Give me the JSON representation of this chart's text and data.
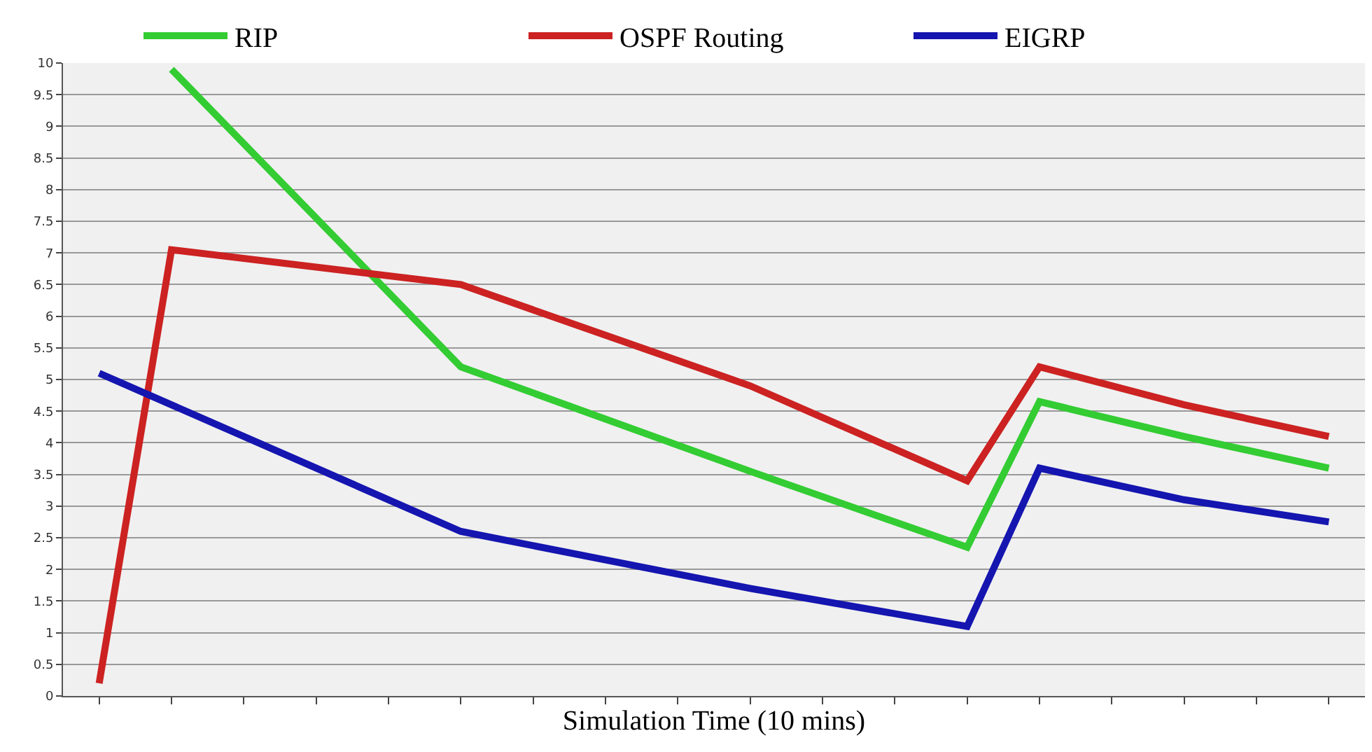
{
  "chart_data": {
    "type": "line",
    "xlabel": "Simulation Time (10 mins)",
    "categories": [
      null,
      null,
      null,
      null,
      null,
      null,
      null,
      null,
      null,
      null,
      null,
      null,
      null,
      null,
      null,
      null,
      null,
      null
    ],
    "ylim": [
      0,
      10
    ],
    "yticks": [
      0,
      0.5,
      1,
      1.5,
      2,
      2.5,
      3,
      3.5,
      4,
      4.5,
      5,
      5.5,
      6,
      6.5,
      7,
      7.5,
      8,
      8.5,
      9,
      9.5,
      10
    ],
    "grid": "y",
    "legend": "top",
    "marker": "none",
    "line_style": "solid",
    "series": [
      {
        "name": "RIP",
        "color": "#33cc33",
        "values": [
          null,
          9.9,
          null,
          null,
          null,
          5.2,
          null,
          null,
          null,
          3.55,
          null,
          null,
          2.35,
          4.65,
          null,
          4.1,
          null,
          3.6
        ]
      },
      {
        "name": "OSPF Routing",
        "color": "#cc2222",
        "values": [
          0.2,
          7.05,
          null,
          null,
          null,
          6.5,
          null,
          null,
          null,
          4.9,
          null,
          null,
          3.4,
          5.2,
          null,
          4.6,
          null,
          4.1
        ]
      },
      {
        "name": "EIGRP",
        "color": "#1515b0",
        "values": [
          5.1,
          null,
          null,
          null,
          null,
          2.6,
          null,
          null,
          null,
          1.7,
          null,
          null,
          1.1,
          3.6,
          null,
          3.1,
          null,
          2.75
        ]
      }
    ]
  }
}
